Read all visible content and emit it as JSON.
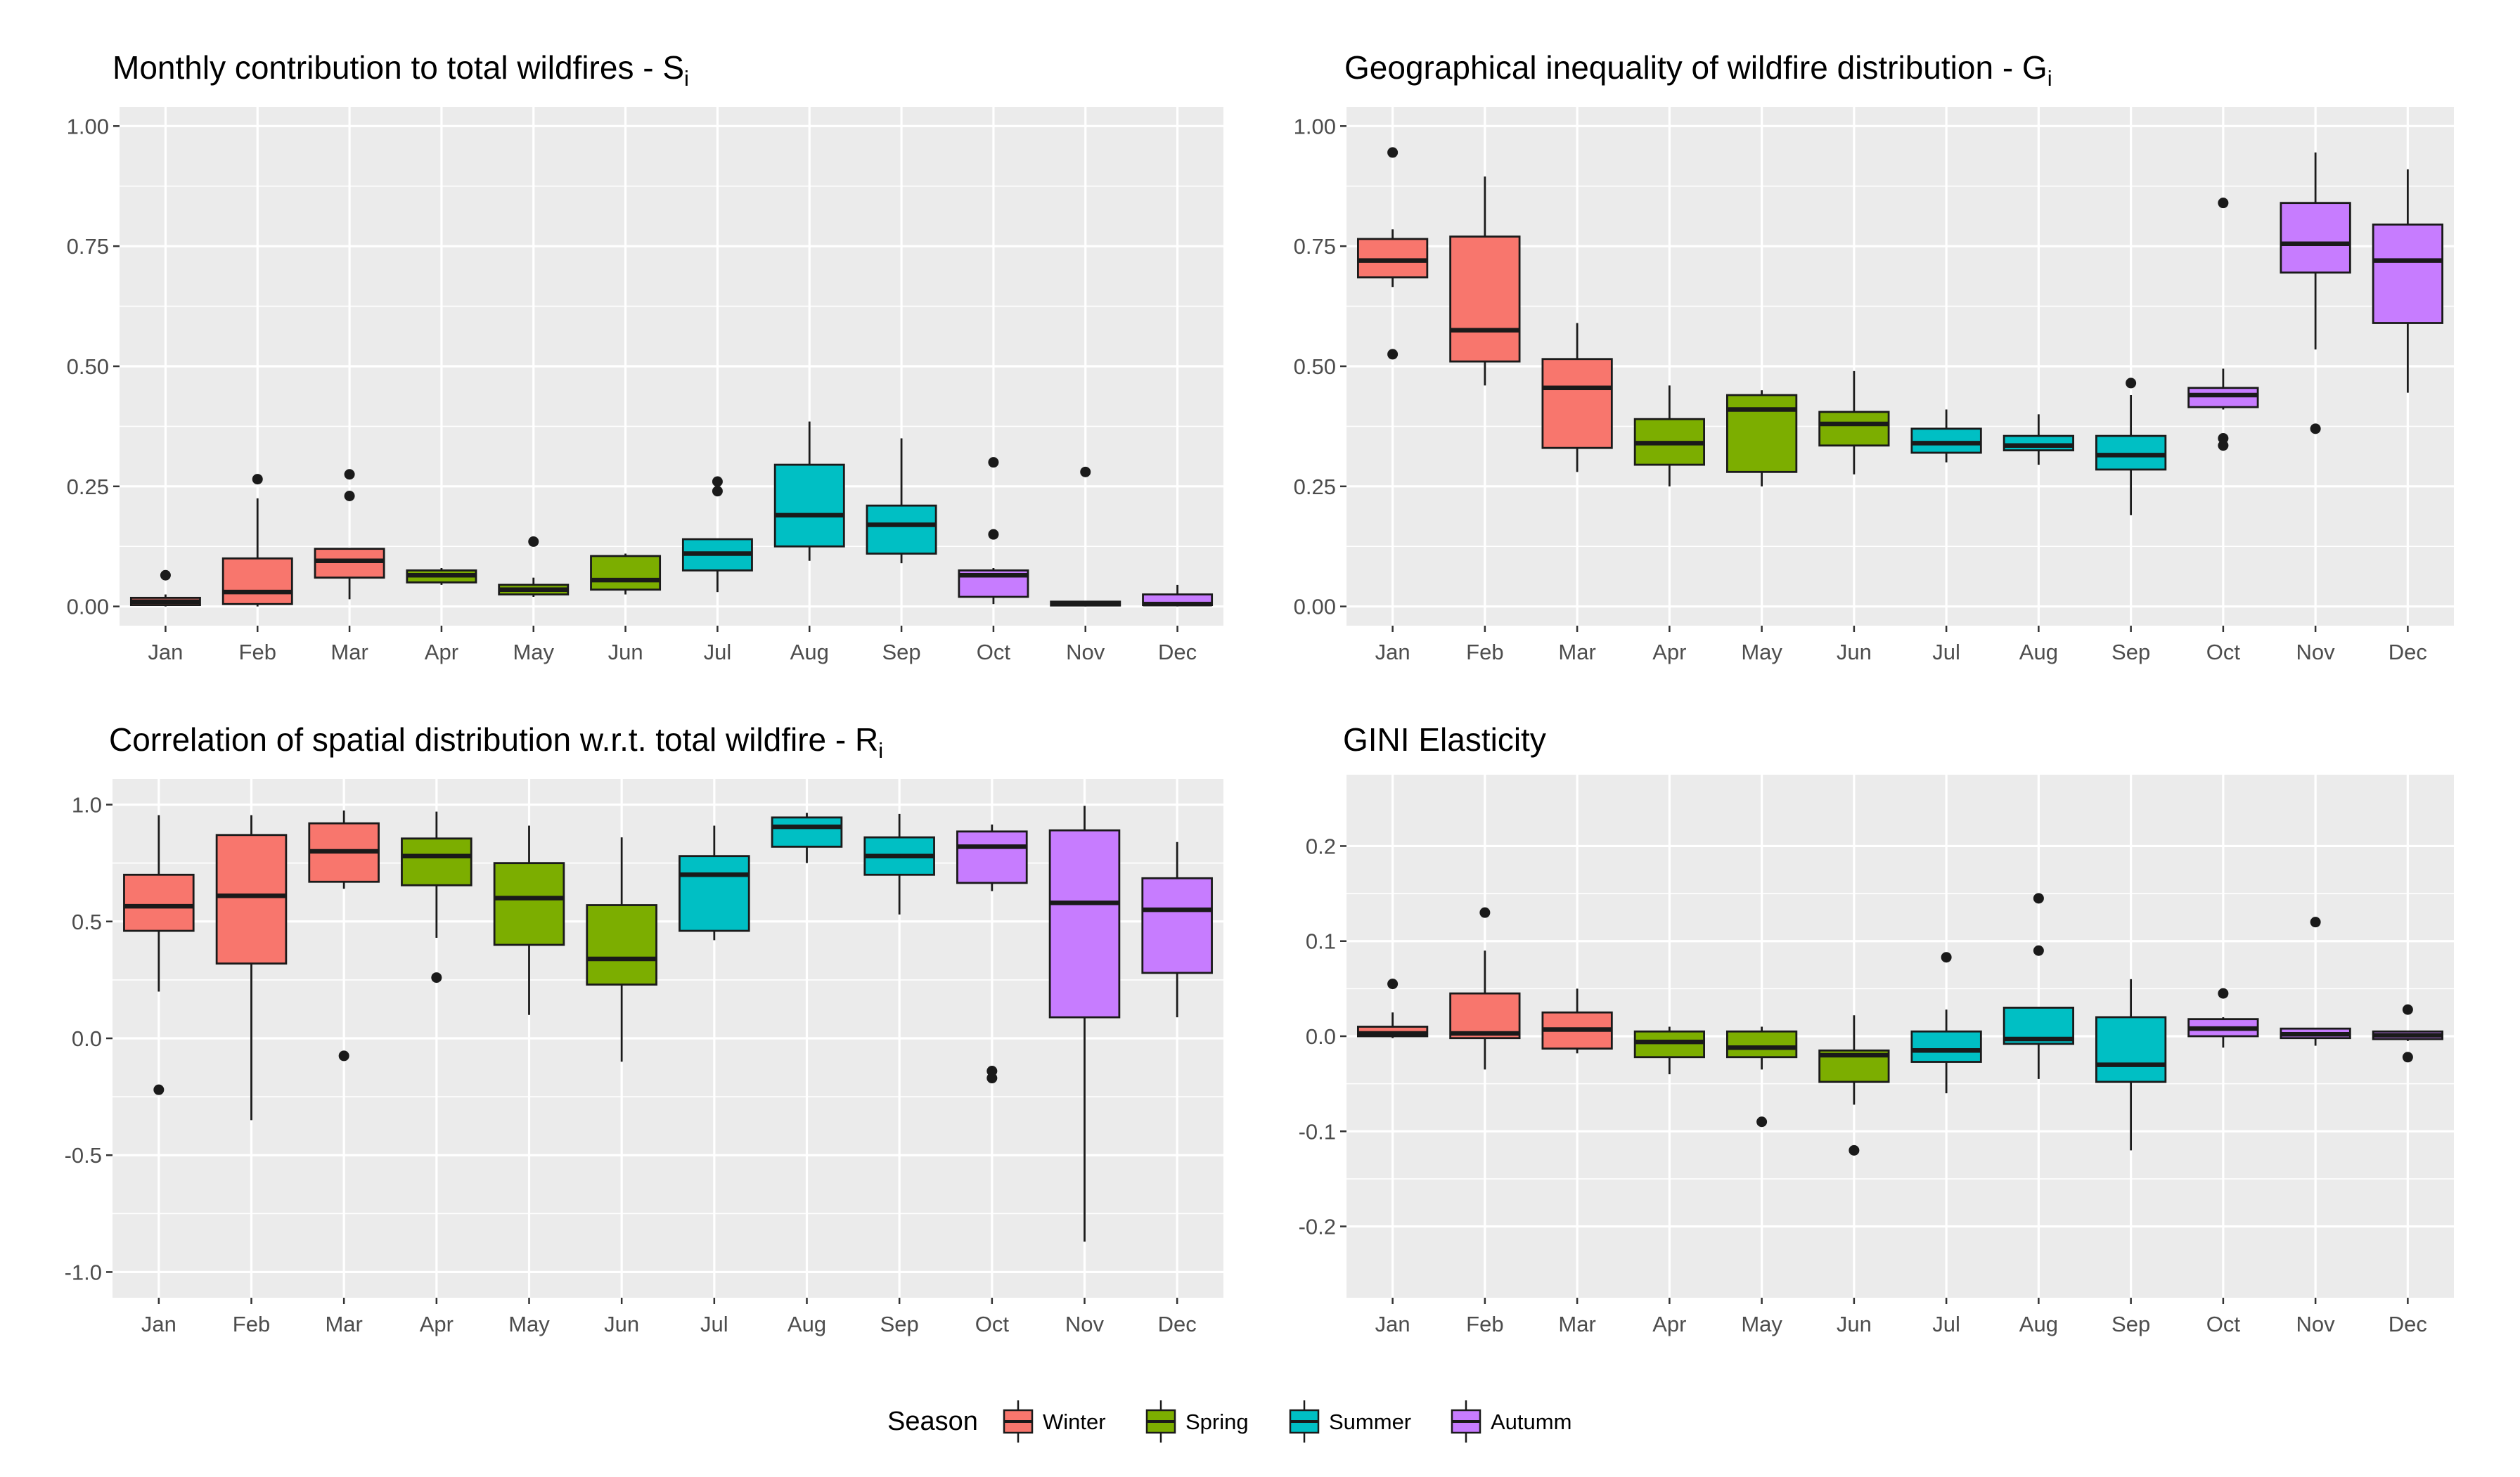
{
  "legend": {
    "title": "Season",
    "entries": [
      {
        "name": "Winter",
        "color": "#F8766D"
      },
      {
        "name": "Spring",
        "color": "#7CAE00"
      },
      {
        "name": "Summer",
        "color": "#00BFC4"
      },
      {
        "name": "Autumm",
        "color": "#C77CFF"
      }
    ]
  },
  "colors": {
    "panel_bg": "#EBEBEB",
    "grid": "#FFFFFF",
    "box_outline": "#1A1A1A",
    "median": "#1A1A1A",
    "outlier": "#1A1A1A"
  },
  "chart_data": [
    {
      "type": "boxplot",
      "title": "Monthly contribution to total wildfires - S",
      "title_subscript": "i",
      "xlabel": "",
      "ylabel": "",
      "ylim": [
        -0.04,
        1.04
      ],
      "yticks": [
        0.0,
        0.25,
        0.5,
        0.75,
        1.0
      ],
      "ytick_labels": [
        "0.00",
        "0.25",
        "0.50",
        "0.75",
        "1.00"
      ],
      "categories": [
        "Jan",
        "Feb",
        "Mar",
        "Apr",
        "May",
        "Jun",
        "Jul",
        "Aug",
        "Sep",
        "Oct",
        "Nov",
        "Dec"
      ],
      "seasons": [
        "Winter",
        "Winter",
        "Winter",
        "Spring",
        "Spring",
        "Spring",
        "Summer",
        "Summer",
        "Summer",
        "Autumm",
        "Autumm",
        "Autumm"
      ],
      "boxes": [
        {
          "min": 0.0,
          "q1": 0.003,
          "median": 0.01,
          "q3": 0.018,
          "max": 0.025,
          "outliers": [
            0.065
          ]
        },
        {
          "min": 0.0,
          "q1": 0.005,
          "median": 0.03,
          "q3": 0.1,
          "max": 0.225,
          "outliers": [
            0.265
          ]
        },
        {
          "min": 0.015,
          "q1": 0.06,
          "median": 0.095,
          "q3": 0.12,
          "max": 0.12,
          "outliers": [
            0.23,
            0.275
          ]
        },
        {
          "min": 0.045,
          "q1": 0.05,
          "median": 0.065,
          "q3": 0.075,
          "max": 0.08,
          "outliers": []
        },
        {
          "min": 0.02,
          "q1": 0.025,
          "median": 0.035,
          "q3": 0.045,
          "max": 0.06,
          "outliers": [
            0.135
          ]
        },
        {
          "min": 0.025,
          "q1": 0.035,
          "median": 0.055,
          "q3": 0.105,
          "max": 0.11,
          "outliers": []
        },
        {
          "min": 0.03,
          "q1": 0.075,
          "median": 0.11,
          "q3": 0.14,
          "max": 0.14,
          "outliers": [
            0.24,
            0.26
          ]
        },
        {
          "min": 0.095,
          "q1": 0.125,
          "median": 0.19,
          "q3": 0.295,
          "max": 0.385,
          "outliers": []
        },
        {
          "min": 0.09,
          "q1": 0.11,
          "median": 0.17,
          "q3": 0.21,
          "max": 0.35,
          "outliers": []
        },
        {
          "min": 0.005,
          "q1": 0.02,
          "median": 0.065,
          "q3": 0.075,
          "max": 0.08,
          "outliers": [
            0.15,
            0.3
          ]
        },
        {
          "min": 0.0,
          "q1": 0.002,
          "median": 0.005,
          "q3": 0.01,
          "max": 0.012,
          "outliers": [
            0.28
          ]
        },
        {
          "min": 0.0,
          "q1": 0.003,
          "median": 0.005,
          "q3": 0.025,
          "max": 0.045,
          "outliers": []
        }
      ]
    },
    {
      "type": "boxplot",
      "title": "Geographical inequality of wildfire distribution - G",
      "title_subscript": "i",
      "xlabel": "",
      "ylabel": "",
      "ylim": [
        -0.04,
        1.04
      ],
      "yticks": [
        0.0,
        0.25,
        0.5,
        0.75,
        1.0
      ],
      "ytick_labels": [
        "0.00",
        "0.25",
        "0.50",
        "0.75",
        "1.00"
      ],
      "categories": [
        "Jan",
        "Feb",
        "Mar",
        "Apr",
        "May",
        "Jun",
        "Jul",
        "Aug",
        "Sep",
        "Oct",
        "Nov",
        "Dec"
      ],
      "seasons": [
        "Winter",
        "Winter",
        "Winter",
        "Spring",
        "Spring",
        "Spring",
        "Summer",
        "Summer",
        "Summer",
        "Autumm",
        "Autumm",
        "Autumm"
      ],
      "boxes": [
        {
          "min": 0.665,
          "q1": 0.685,
          "median": 0.72,
          "q3": 0.765,
          "max": 0.785,
          "outliers": [
            0.525,
            0.945
          ]
        },
        {
          "min": 0.46,
          "q1": 0.51,
          "median": 0.575,
          "q3": 0.77,
          "max": 0.895,
          "outliers": []
        },
        {
          "min": 0.28,
          "q1": 0.33,
          "median": 0.455,
          "q3": 0.515,
          "max": 0.59,
          "outliers": []
        },
        {
          "min": 0.25,
          "q1": 0.295,
          "median": 0.34,
          "q3": 0.39,
          "max": 0.46,
          "outliers": []
        },
        {
          "min": 0.25,
          "q1": 0.28,
          "median": 0.41,
          "q3": 0.44,
          "max": 0.45,
          "outliers": []
        },
        {
          "min": 0.275,
          "q1": 0.335,
          "median": 0.38,
          "q3": 0.405,
          "max": 0.49,
          "outliers": []
        },
        {
          "min": 0.3,
          "q1": 0.32,
          "median": 0.34,
          "q3": 0.37,
          "max": 0.41,
          "outliers": []
        },
        {
          "min": 0.295,
          "q1": 0.325,
          "median": 0.335,
          "q3": 0.355,
          "max": 0.4,
          "outliers": []
        },
        {
          "min": 0.19,
          "q1": 0.285,
          "median": 0.315,
          "q3": 0.355,
          "max": 0.44,
          "outliers": [
            0.465
          ]
        },
        {
          "min": 0.41,
          "q1": 0.415,
          "median": 0.44,
          "q3": 0.455,
          "max": 0.495,
          "outliers": [
            0.335,
            0.35,
            0.84
          ]
        },
        {
          "min": 0.535,
          "q1": 0.695,
          "median": 0.755,
          "q3": 0.84,
          "max": 0.945,
          "outliers": [
            0.37
          ]
        },
        {
          "min": 0.445,
          "q1": 0.59,
          "median": 0.72,
          "q3": 0.795,
          "max": 0.91,
          "outliers": []
        }
      ]
    },
    {
      "type": "boxplot",
      "title": "Correlation of spatial distribution w.r.t. total wildfire - R",
      "title_subscript": "i",
      "xlabel": "",
      "ylabel": "",
      "ylim": [
        -1.11,
        1.11
      ],
      "yticks": [
        -1.0,
        -0.5,
        0.0,
        0.5,
        1.0
      ],
      "ytick_labels": [
        "-1.0",
        "-0.5",
        "0.0",
        "0.5",
        "1.0"
      ],
      "categories": [
        "Jan",
        "Feb",
        "Mar",
        "Apr",
        "May",
        "Jun",
        "Jul",
        "Aug",
        "Sep",
        "Oct",
        "Nov",
        "Dec"
      ],
      "seasons": [
        "Winter",
        "Winter",
        "Winter",
        "Spring",
        "Spring",
        "Spring",
        "Summer",
        "Summer",
        "Summer",
        "Autumm",
        "Autumm",
        "Autumm"
      ],
      "boxes": [
        {
          "min": 0.2,
          "q1": 0.46,
          "median": 0.565,
          "q3": 0.7,
          "max": 0.955,
          "outliers": [
            -0.22
          ]
        },
        {
          "min": -0.35,
          "q1": 0.32,
          "median": 0.61,
          "q3": 0.87,
          "max": 0.955,
          "outliers": []
        },
        {
          "min": 0.64,
          "q1": 0.67,
          "median": 0.8,
          "q3": 0.92,
          "max": 0.975,
          "outliers": [
            -0.075
          ]
        },
        {
          "min": 0.43,
          "q1": 0.655,
          "median": 0.78,
          "q3": 0.855,
          "max": 0.97,
          "outliers": [
            0.26
          ]
        },
        {
          "min": 0.1,
          "q1": 0.4,
          "median": 0.6,
          "q3": 0.75,
          "max": 0.91,
          "outliers": []
        },
        {
          "min": -0.1,
          "q1": 0.23,
          "median": 0.34,
          "q3": 0.57,
          "max": 0.86,
          "outliers": []
        },
        {
          "min": 0.42,
          "q1": 0.46,
          "median": 0.7,
          "q3": 0.78,
          "max": 0.91,
          "outliers": []
        },
        {
          "min": 0.75,
          "q1": 0.82,
          "median": 0.905,
          "q3": 0.945,
          "max": 0.965,
          "outliers": []
        },
        {
          "min": 0.53,
          "q1": 0.7,
          "median": 0.78,
          "q3": 0.86,
          "max": 0.96,
          "outliers": []
        },
        {
          "min": 0.63,
          "q1": 0.665,
          "median": 0.82,
          "q3": 0.885,
          "max": 0.915,
          "outliers": [
            -0.14,
            -0.17
          ]
        },
        {
          "min": -0.87,
          "q1": 0.09,
          "median": 0.58,
          "q3": 0.89,
          "max": 0.995,
          "outliers": []
        },
        {
          "min": 0.09,
          "q1": 0.28,
          "median": 0.55,
          "q3": 0.685,
          "max": 0.84,
          "outliers": []
        }
      ]
    },
    {
      "type": "boxplot",
      "title": "GINI Elasticity",
      "title_subscript": "",
      "xlabel": "",
      "ylabel": "",
      "ylim": [
        -0.275,
        0.275
      ],
      "yticks": [
        -0.2,
        -0.1,
        0.0,
        0.1,
        0.2
      ],
      "ytick_labels": [
        "-0.2",
        "-0.1",
        "0.0",
        "0.1",
        "0.2"
      ],
      "categories": [
        "Jan",
        "Feb",
        "Mar",
        "Apr",
        "May",
        "Jun",
        "Jul",
        "Aug",
        "Sep",
        "Oct",
        "Nov",
        "Dec"
      ],
      "seasons": [
        "Winter",
        "Winter",
        "Winter",
        "Spring",
        "Spring",
        "Spring",
        "Summer",
        "Summer",
        "Summer",
        "Autumm",
        "Autumm",
        "Autumm"
      ],
      "boxes": [
        {
          "min": -0.002,
          "q1": 0.0,
          "median": 0.003,
          "q3": 0.01,
          "max": 0.025,
          "outliers": [
            0.055
          ]
        },
        {
          "min": -0.035,
          "q1": -0.002,
          "median": 0.003,
          "q3": 0.045,
          "max": 0.09,
          "outliers": [
            0.13
          ]
        },
        {
          "min": -0.018,
          "q1": -0.013,
          "median": 0.007,
          "q3": 0.025,
          "max": 0.05,
          "outliers": []
        },
        {
          "min": -0.04,
          "q1": -0.022,
          "median": -0.006,
          "q3": 0.005,
          "max": 0.01,
          "outliers": []
        },
        {
          "min": -0.035,
          "q1": -0.022,
          "median": -0.012,
          "q3": 0.005,
          "max": 0.01,
          "outliers": [
            -0.09
          ]
        },
        {
          "min": -0.072,
          "q1": -0.048,
          "median": -0.02,
          "q3": -0.015,
          "max": 0.022,
          "outliers": [
            -0.12
          ]
        },
        {
          "min": -0.06,
          "q1": -0.027,
          "median": -0.015,
          "q3": 0.005,
          "max": 0.028,
          "outliers": [
            0.083
          ]
        },
        {
          "min": -0.045,
          "q1": -0.008,
          "median": -0.003,
          "q3": 0.03,
          "max": 0.03,
          "outliers": [
            0.09,
            0.145
          ]
        },
        {
          "min": -0.12,
          "q1": -0.048,
          "median": -0.03,
          "q3": 0.02,
          "max": 0.06,
          "outliers": []
        },
        {
          "min": -0.012,
          "q1": 0.0,
          "median": 0.008,
          "q3": 0.018,
          "max": 0.02,
          "outliers": [
            0.045
          ]
        },
        {
          "min": -0.01,
          "q1": -0.002,
          "median": 0.002,
          "q3": 0.008,
          "max": 0.008,
          "outliers": [
            0.12
          ]
        },
        {
          "min": -0.005,
          "q1": -0.003,
          "median": 0.001,
          "q3": 0.005,
          "max": 0.005,
          "outliers": [
            -0.022,
            0.028
          ]
        }
      ]
    }
  ]
}
